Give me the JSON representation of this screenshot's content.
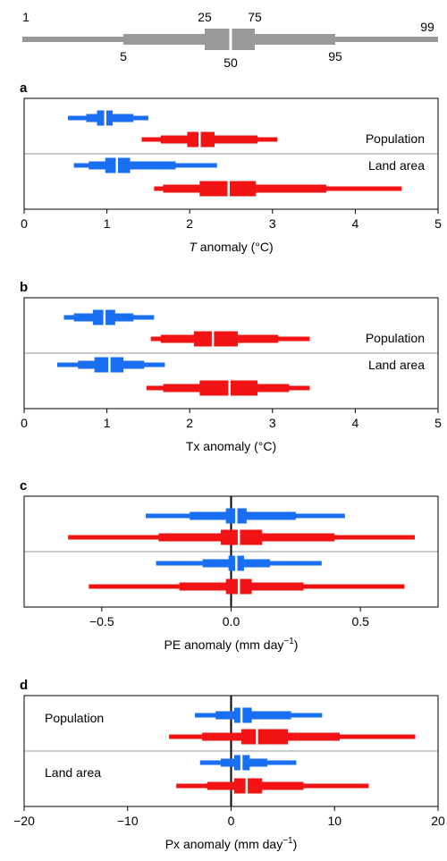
{
  "legend": {
    "labels": {
      "p1": "1",
      "p5": "5",
      "p25": "25",
      "p50": "50",
      "p75": "75",
      "p95": "95",
      "p99": "99"
    },
    "color": "#999999"
  },
  "colors": {
    "blue": "#1a6ef2",
    "red": "#f21414",
    "frame": "#000000",
    "divider": "#999999"
  },
  "chart_data": [
    {
      "panel_label": "a",
      "type": "box-percentile",
      "xlabel_italic": "T",
      "xlabel_rest": " anomaly (°C)",
      "xlim": [
        0,
        5
      ],
      "xticks": [
        "0",
        "1",
        "2",
        "3",
        "4",
        "5"
      ],
      "xtick_values": [
        0,
        1,
        2,
        3,
        4,
        5
      ],
      "zero_line": false,
      "groups": [
        {
          "label": "Population",
          "label_position": "right"
        },
        {
          "label": "Land area",
          "label_position": "right"
        }
      ],
      "rows": [
        {
          "group": 0,
          "color": "blue",
          "p1": 0.53,
          "p5": 0.75,
          "p25": 0.88,
          "p50": 0.98,
          "p75": 1.07,
          "p95": 1.32,
          "p99": 1.5
        },
        {
          "group": 0,
          "color": "red",
          "p1": 1.42,
          "p5": 1.65,
          "p25": 1.97,
          "p50": 2.12,
          "p75": 2.3,
          "p95": 2.82,
          "p99": 3.06
        },
        {
          "group": 1,
          "color": "blue",
          "p1": 0.6,
          "p5": 0.78,
          "p25": 0.98,
          "p50": 1.12,
          "p75": 1.28,
          "p95": 1.83,
          "p99": 2.33
        },
        {
          "group": 1,
          "color": "red",
          "p1": 1.57,
          "p5": 1.68,
          "p25": 2.12,
          "p50": 2.47,
          "p75": 2.8,
          "p95": 3.65,
          "p99": 4.56
        }
      ]
    },
    {
      "panel_label": "b",
      "type": "box-percentile",
      "xlabel_italic": "",
      "xlabel_rest": "Tx anomaly (°C)",
      "xlim": [
        0,
        5
      ],
      "xticks": [
        "0",
        "1",
        "2",
        "3",
        "4",
        "5"
      ],
      "xtick_values": [
        0,
        1,
        2,
        3,
        4,
        5
      ],
      "zero_line": false,
      "groups": [
        {
          "label": "Population",
          "label_position": "right"
        },
        {
          "label": "Land area",
          "label_position": "right"
        }
      ],
      "rows": [
        {
          "group": 0,
          "color": "blue",
          "p1": 0.48,
          "p5": 0.6,
          "p25": 0.83,
          "p50": 0.97,
          "p75": 1.1,
          "p95": 1.32,
          "p99": 1.57
        },
        {
          "group": 0,
          "color": "red",
          "p1": 1.53,
          "p5": 1.65,
          "p25": 2.05,
          "p50": 2.28,
          "p75": 2.58,
          "p95": 3.07,
          "p99": 3.45
        },
        {
          "group": 1,
          "color": "blue",
          "p1": 0.4,
          "p5": 0.65,
          "p25": 0.85,
          "p50": 1.03,
          "p75": 1.2,
          "p95": 1.45,
          "p99": 1.7
        },
        {
          "group": 1,
          "color": "red",
          "p1": 1.48,
          "p5": 1.68,
          "p25": 2.12,
          "p50": 2.48,
          "p75": 2.82,
          "p95": 3.2,
          "p99": 3.45
        }
      ]
    },
    {
      "panel_label": "c",
      "type": "box-percentile",
      "xlabel_italic": "",
      "xlabel_rest": "PE anomaly (mm day",
      "xlabel_sup": "−1",
      "xlabel_end": ")",
      "xlim": [
        -0.8,
        0.8
      ],
      "xticks": [
        "−0.5",
        "0.0",
        "0.5"
      ],
      "xtick_values": [
        -0.5,
        0.0,
        0.5
      ],
      "zero_line": true,
      "groups": [
        {
          "label": "",
          "label_position": "none"
        },
        {
          "label": "",
          "label_position": "none"
        }
      ],
      "rows": [
        {
          "group": 0,
          "color": "blue",
          "p1": -0.33,
          "p5": -0.16,
          "p25": -0.02,
          "p50": 0.02,
          "p75": 0.06,
          "p95": 0.25,
          "p99": 0.44
        },
        {
          "group": 0,
          "color": "red",
          "p1": -0.63,
          "p5": -0.28,
          "p25": -0.04,
          "p50": 0.03,
          "p75": 0.12,
          "p95": 0.4,
          "p99": 0.71
        },
        {
          "group": 1,
          "color": "blue",
          "p1": -0.29,
          "p5": -0.11,
          "p25": -0.01,
          "p50": 0.02,
          "p75": 0.05,
          "p95": 0.15,
          "p99": 0.35
        },
        {
          "group": 1,
          "color": "red",
          "p1": -0.55,
          "p5": -0.2,
          "p25": -0.02,
          "p50": 0.03,
          "p75": 0.08,
          "p95": 0.28,
          "p99": 0.67
        }
      ]
    },
    {
      "panel_label": "d",
      "type": "box-percentile",
      "xlabel_italic": "",
      "xlabel_rest": "Px anomaly (mm day",
      "xlabel_sup": "−1",
      "xlabel_end": ")",
      "xlim": [
        -20,
        20
      ],
      "xticks": [
        "−20",
        "−10",
        "0",
        "10",
        "20"
      ],
      "xtick_values": [
        -20,
        -10,
        0,
        10,
        20
      ],
      "zero_line": true,
      "groups": [
        {
          "label": "Population",
          "label_position": "left"
        },
        {
          "label": "Land area",
          "label_position": "left"
        }
      ],
      "rows": [
        {
          "group": 0,
          "color": "blue",
          "p1": -3.5,
          "p5": -1.5,
          "p25": 0.3,
          "p50": 1.0,
          "p75": 2.0,
          "p95": 5.8,
          "p99": 8.8
        },
        {
          "group": 0,
          "color": "red",
          "p1": -6.0,
          "p5": -2.8,
          "p25": 1.0,
          "p50": 2.5,
          "p75": 5.5,
          "p95": 10.5,
          "p99": 17.8
        },
        {
          "group": 1,
          "color": "blue",
          "p1": -3.0,
          "p5": -1.0,
          "p25": 0.3,
          "p50": 1.0,
          "p75": 1.8,
          "p95": 3.5,
          "p99": 6.3
        },
        {
          "group": 1,
          "color": "red",
          "p1": -5.3,
          "p5": -2.3,
          "p25": 0.3,
          "p50": 1.5,
          "p75": 3.0,
          "p95": 7.0,
          "p99": 13.3
        }
      ]
    }
  ]
}
